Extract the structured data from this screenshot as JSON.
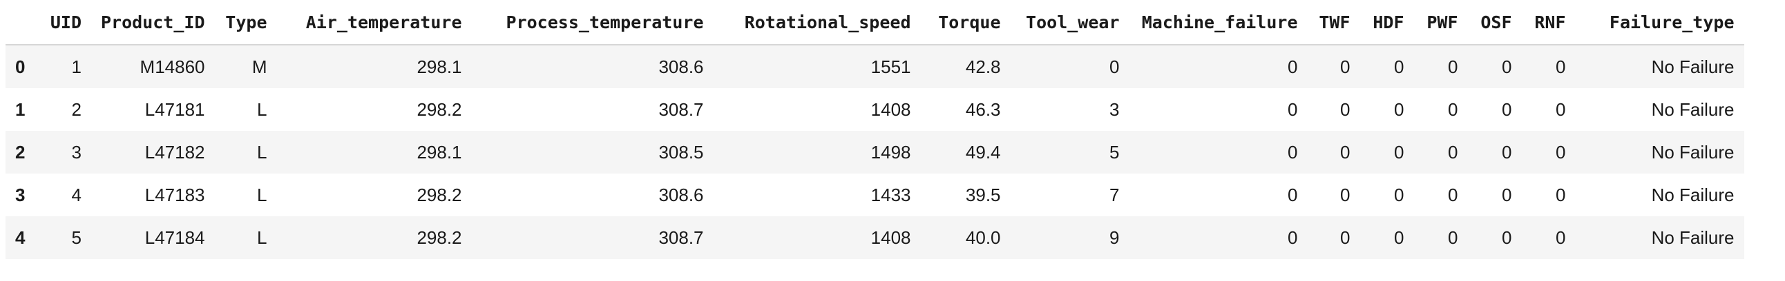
{
  "table": {
    "columns": [
      "",
      "UID",
      "Product_ID",
      "Type",
      "Air_temperature",
      "Process_temperature",
      "Rotational_speed",
      "Torque",
      "Tool_wear",
      "Machine_failure",
      "TWF",
      "HDF",
      "PWF",
      "OSF",
      "RNF",
      "Failure_type"
    ],
    "rows": [
      [
        "0",
        "1",
        "M14860",
        "M",
        "298.1",
        "308.6",
        "1551",
        "42.8",
        "0",
        "0",
        "0",
        "0",
        "0",
        "0",
        "0",
        "No Failure"
      ],
      [
        "1",
        "2",
        "L47181",
        "L",
        "298.2",
        "308.7",
        "1408",
        "46.3",
        "3",
        "0",
        "0",
        "0",
        "0",
        "0",
        "0",
        "No Failure"
      ],
      [
        "2",
        "3",
        "L47182",
        "L",
        "298.1",
        "308.5",
        "1498",
        "49.4",
        "5",
        "0",
        "0",
        "0",
        "0",
        "0",
        "0",
        "No Failure"
      ],
      [
        "3",
        "4",
        "L47183",
        "L",
        "298.2",
        "308.6",
        "1433",
        "39.5",
        "7",
        "0",
        "0",
        "0",
        "0",
        "0",
        "0",
        "No Failure"
      ],
      [
        "4",
        "5",
        "L47184",
        "L",
        "298.2",
        "308.7",
        "1408",
        "40.0",
        "9",
        "0",
        "0",
        "0",
        "0",
        "0",
        "0",
        "No Failure"
      ]
    ]
  }
}
